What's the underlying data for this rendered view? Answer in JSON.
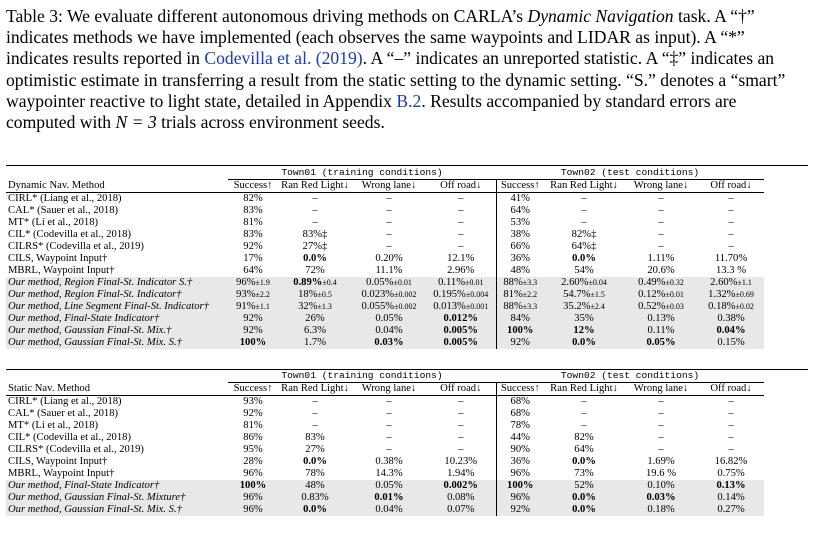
{
  "caption": {
    "p1": "Table 3: We evaluate different autonomous driving methods on CARLA’s ",
    "p1_it": "Dynamic Navigation",
    "p2": " task. A “†” indicates methods we have implemented (each observes the same waypoints and LIDAR as input). A “*” indicates results reported in ",
    "link": "Codevilla et al. (2019)",
    "p3": ". A “–” indicates an unreported statistic. A “‡” indicates an optimistic estimate in transferring a result from the static setting to the dynamic setting. “S.” denotes a “smart” waypointer reactive to light state, detailed in Appendix ",
    "link2": "B.2",
    "p4": ". Results accompanied by standard errors are computed with ",
    "math": "N = 3",
    "p5": " trials across environment seeds."
  },
  "dynamic": {
    "group1": "Town01 (training conditions)",
    "group2": "Town02 (test conditions)",
    "headers": [
      "Dynamic Nav. Method",
      "Success↑",
      "Ran Red Light↓",
      "Wrong lane↓",
      "Off road↓",
      "Success↑",
      "Ran Red Light↓",
      "Wrong lane↓",
      "Off road↓"
    ],
    "rows": [
      {
        "cells": [
          "CIRL* (Liang et al., 2018)",
          "82%",
          "–",
          "–",
          "–",
          "41%",
          "–",
          "–",
          "–"
        ]
      },
      {
        "cells": [
          "CAL* (Sauer et al., 2018)",
          "83%",
          "–",
          "–",
          "–",
          "64%",
          "–",
          "–",
          "–"
        ]
      },
      {
        "cells": [
          "MT* (Li et al., 2018)",
          "81%",
          "–",
          "–",
          "–",
          "53%",
          "–",
          "–",
          "–"
        ]
      },
      {
        "cells": [
          "CIL* (Codevilla et al., 2018)",
          "83%",
          "83%‡",
          "–",
          "–",
          "38%",
          "82%‡",
          "–",
          "–"
        ]
      },
      {
        "cells": [
          "CILRS* (Codevilla et al., 2019)",
          "92%",
          "27%‡",
          "–",
          "–",
          "66%",
          "64%‡",
          "–",
          "–"
        ]
      },
      {
        "cells": [
          "CILS, Waypoint Input†",
          "17%",
          "0.0%",
          "0.20%",
          "12.1%",
          "36%",
          "0.0%",
          "1.11%",
          "11.70%"
        ]
      },
      {
        "cells": [
          "MBRL, Waypoint Input†",
          "64%",
          "72%",
          "11.1%",
          "2.96%",
          "48%",
          "54%",
          "20.6%",
          "13.3 %"
        ]
      },
      {
        "cells": [
          "Our method, Region Final-St. Indicator S.†",
          "96%±1.9",
          "0.89%±0.4",
          "0.05%±0.01",
          "0.11%±0.01",
          "88%±3.3",
          "2.60%±0.04",
          "0.49%±0.32",
          "2.60%±1.1"
        ]
      },
      {
        "cells": [
          "Our method, Region Final-St. Indicator†",
          "93%±2.2",
          "18%±0.5",
          "0.023%±0.002",
          "0.195%±0.004",
          "81%±2.2",
          "54.7%±1.5",
          "0.12%±0.01",
          "1.32%±0.69"
        ]
      },
      {
        "cells": [
          "Our method, Line Segment Final-St. Indicator†",
          "91%±1.1",
          "32%±1.3",
          "0.055%±0.002",
          "0.013%±0.001",
          "88%±3.3",
          "35.2%±2.4",
          "0.52%±0.03",
          "0.18%±0.02"
        ]
      },
      {
        "cells": [
          "Our method, Final-State Indicator†",
          "92%",
          "26%",
          "0.05%",
          "0.012%",
          "84%",
          "35%",
          "0.13%",
          "0.38%"
        ]
      },
      {
        "cells": [
          "Our method, Gaussian Final-St. Mix.†",
          "92%",
          "6.3%",
          "0.04%",
          "0.005%",
          "100%",
          "12%",
          "0.11%",
          "0.04%"
        ]
      },
      {
        "cells": [
          "Our method, Gaussian Final-St. Mix. S.†",
          "100%",
          "1.7%",
          "0.03%",
          "0.005%",
          "92%",
          "0.0%",
          "0.05%",
          "0.15%"
        ]
      }
    ]
  },
  "static": {
    "group1": "Town01 (training conditions)",
    "group2": "Town02 (test conditions)",
    "headers": [
      "Static Nav. Method",
      "Success↑",
      "Ran Red Light↓",
      "Wrong lane↓",
      "Off road↓",
      "Success↑",
      "Ran Red Light↓",
      "Wrong lane↓",
      "Off road↓"
    ],
    "rows": [
      {
        "cells": [
          "CIRL* (Liang et al., 2018)",
          "93%",
          "–",
          "–",
          "–",
          "68%",
          "–",
          "–",
          "–"
        ]
      },
      {
        "cells": [
          "CAL* (Sauer et al., 2018)",
          "92%",
          "–",
          "–",
          "–",
          "68%",
          "–",
          "–",
          "–"
        ]
      },
      {
        "cells": [
          "MT* (Li et al., 2018)",
          "81%",
          "–",
          "–",
          "–",
          "78%",
          "–",
          "–",
          "–"
        ]
      },
      {
        "cells": [
          "CIL* (Codevilla et al., 2018)",
          "86%",
          "83%",
          "–",
          "–",
          "44%",
          "82%",
          "–",
          "–"
        ]
      },
      {
        "cells": [
          "CILRS* (Codevilla et al., 2019)",
          "95%",
          "27%",
          "–",
          "–",
          "90%",
          "64%",
          "–",
          "–"
        ]
      },
      {
        "cells": [
          "CILS, Waypoint Input†",
          "28%",
          "0.0%",
          "0.38%",
          "10.23%",
          "36%",
          "0.0%",
          "1.69%",
          "16.82%"
        ]
      },
      {
        "cells": [
          "MBRL, Waypoint Input†",
          "96%",
          "78%",
          "14.3%",
          "1.94%",
          "96%",
          "73%",
          "19.6 %",
          "0.75%"
        ]
      },
      {
        "cells": [
          "Our method, Final-State Indicator†",
          "100%",
          "48%",
          "0.05%",
          "0.002%",
          "100%",
          "52%",
          "0.10%",
          "0.13%"
        ]
      },
      {
        "cells": [
          "Our method, Gaussian Final-St. Mixture†",
          "96%",
          "0.83%",
          "0.01%",
          "0.08%",
          "96%",
          "0.0%",
          "0.03%",
          "0.14%"
        ]
      },
      {
        "cells": [
          "Our method, Gaussian Final-St. Mix. S.†",
          "96%",
          "0.0%",
          "0.04%",
          "0.07%",
          "92%",
          "0.0%",
          "0.18%",
          "0.27%"
        ]
      }
    ]
  }
}
